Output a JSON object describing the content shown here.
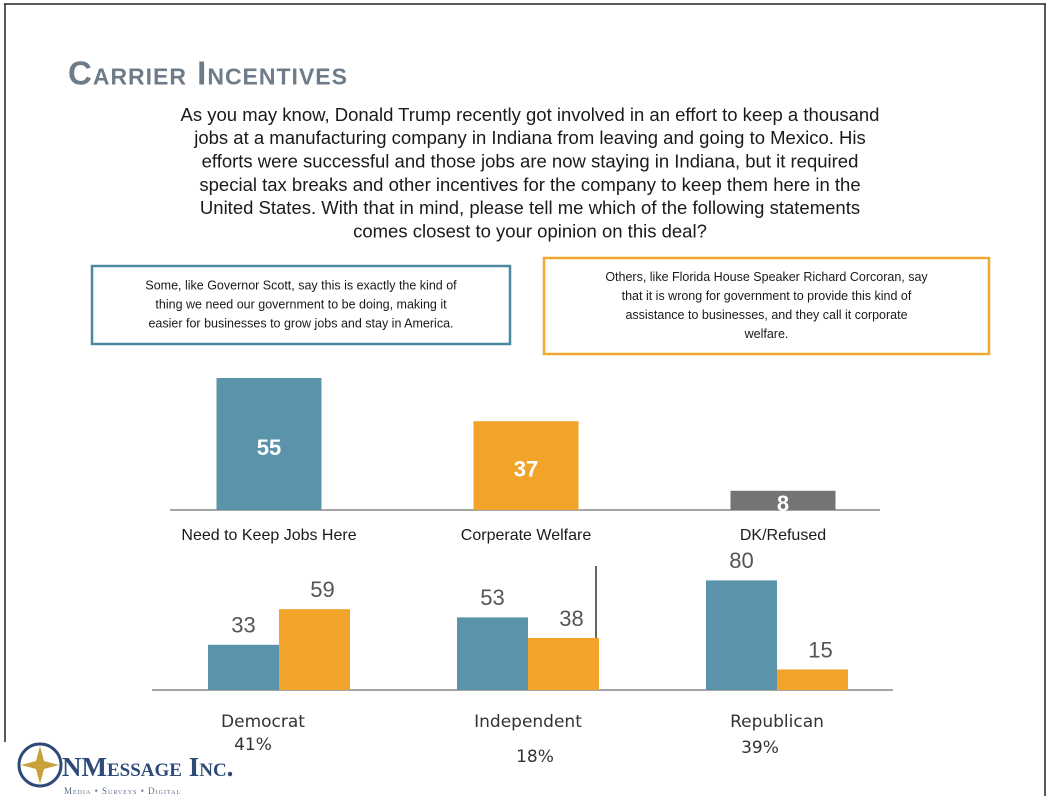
{
  "title": "Carrier Incentives",
  "question": [
    "As you may know, Donald Trump recently got involved in an effort to keep a thousand",
    "jobs at a manufacturing company in Indiana from leaving and going to Mexico.  His",
    "efforts were successful and those jobs are now staying in Indiana, but it required",
    "special tax breaks and other incentives for the company to keep them here in the",
    "United States.  With that in mind, please tell me which of the following statements",
    "comes closest to your opinion on this deal?"
  ],
  "boxes": [
    {
      "color": "#4a8aa0",
      "lines": [
        "Some, like Governor Scott, say this is exactly the kind of",
        "thing we need our government to be doing, making it",
        "easier for businesses to grow jobs and stay in America."
      ]
    },
    {
      "color": "#f0a830",
      "lines": [
        "Others, like Florida House Speaker Richard Corcoran, say",
        "that it is wrong for government to provide this kind of",
        "assistance to businesses, and they call it corporate",
        "welfare."
      ]
    }
  ],
  "chart_data": [
    {
      "type": "bar",
      "categories": [
        "Need to Keep Jobs Here",
        "Corperate Welfare",
        "DK/Refused"
      ],
      "values": [
        55,
        37,
        8
      ],
      "colors": [
        "#5b93aa",
        "#f2a42a",
        "#747474"
      ]
    },
    {
      "type": "grouped_bar",
      "categories": [
        "Democrat",
        "Independent",
        "Republican"
      ],
      "category_shares": [
        "41%",
        "18%",
        "39%"
      ],
      "series": [
        {
          "color": "#5b93aa",
          "values": [
            33,
            53,
            80
          ]
        },
        {
          "color": "#f2a42a",
          "values": [
            59,
            38,
            15
          ]
        }
      ]
    }
  ],
  "logo": {
    "brand": "NMessage Inc.",
    "tagline": "Media • Surveys • Digital"
  }
}
